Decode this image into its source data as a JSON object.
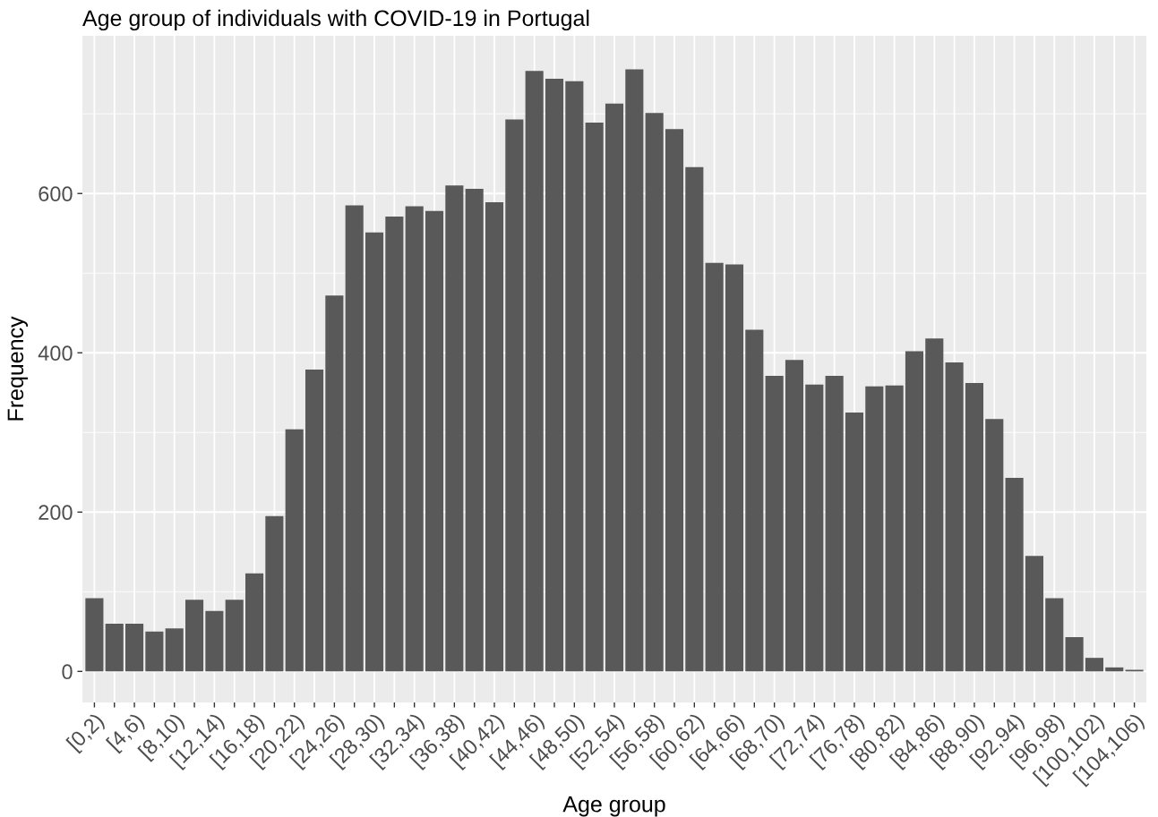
{
  "chart_data": {
    "type": "bar",
    "title": "Age group of individuals with COVID-19 in Portugal",
    "xlabel": "Age group",
    "ylabel": "Frequency",
    "categories": [
      "[0,2)",
      null,
      "[4,6)",
      null,
      "[8,10)",
      null,
      "[12,14)",
      null,
      "[16,18)",
      null,
      "[20,22)",
      null,
      "[24,26)",
      null,
      "[28,30)",
      null,
      "[32,34)",
      null,
      "[36,38)",
      null,
      "[40,42)",
      null,
      "[44,46)",
      null,
      "[48,50)",
      null,
      "[52,54)",
      null,
      "[56,58)",
      null,
      "[60,62)",
      null,
      "[64,66)",
      null,
      "[68,70)",
      null,
      "[72,74)",
      null,
      "[76,78)",
      null,
      "[80,82)",
      null,
      "[84,86)",
      null,
      "[88,90)",
      null,
      "[92,94)",
      null,
      "[96,98)",
      null,
      "[100,102)",
      null,
      "[104,106)"
    ],
    "values": [
      92,
      60,
      60,
      50,
      54,
      90,
      76,
      90,
      123,
      195,
      304,
      379,
      472,
      585,
      551,
      571,
      584,
      578,
      610,
      606,
      589,
      693,
      754,
      744,
      741,
      689,
      713,
      756,
      701,
      681,
      633,
      513,
      511,
      429,
      371,
      391,
      360,
      371,
      325,
      358,
      359,
      402,
      418,
      388,
      362,
      317,
      243,
      145,
      92,
      43,
      17,
      5,
      2
    ],
    "color": "#595959",
    "ylim": [
      -39,
      798
    ],
    "yticks": [
      0,
      200,
      400,
      600
    ],
    "grid": true
  }
}
